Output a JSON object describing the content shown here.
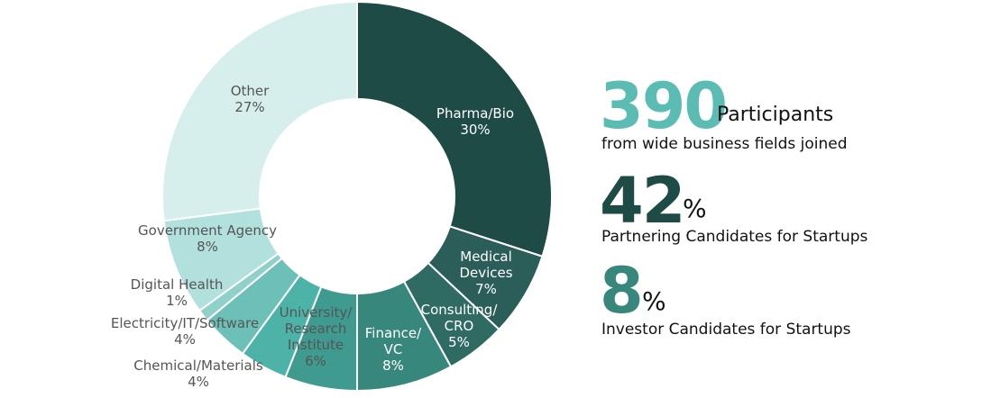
{
  "chart_data": {
    "type": "donut",
    "categories": [
      "Pharma/Bio",
      "Medical\nDevices",
      "Consulting/\nCRO",
      "Finance/\nVC",
      "University/\nResearch\nInstitute",
      "Chemical/Materials",
      "Electricity/IT/Software",
      "Digital Health",
      "Government Agency",
      "Other"
    ],
    "values": [
      30,
      7,
      5,
      8,
      6,
      4,
      4,
      1,
      8,
      27
    ],
    "value_labels": [
      "30%",
      "7%",
      "5%",
      "8%",
      "6%",
      "4%",
      "4%",
      "1%",
      "8%",
      "27%"
    ],
    "colors": [
      "#1f4b47",
      "#2b5e58",
      "#2f6b63",
      "#38877c",
      "#3f9a90",
      "#4db3a8",
      "#6cc0b7",
      "#8fd0c9",
      "#b2e0dc",
      "#d6eeec"
    ]
  },
  "stats": [
    {
      "number": "390",
      "unit": "Participants",
      "caption": "from wide business fields joined",
      "color": "#5bbcb3"
    },
    {
      "number": "42",
      "unit": "%",
      "caption": "Partnering Candidates for Startups",
      "color": "#1f4b47"
    },
    {
      "number": "8",
      "unit": "%",
      "caption": "Investor Candidates for Startups",
      "color": "#38877c"
    }
  ]
}
